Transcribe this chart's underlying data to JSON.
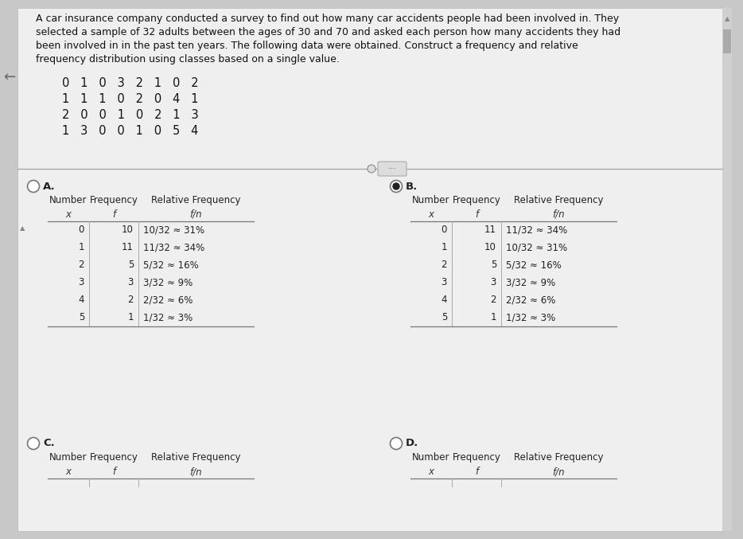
{
  "bg_color": "#c8c8c8",
  "content_bg": "#e8e8e8",
  "paragraph_text_lines": [
    "A car insurance company conducted a survey to find out how many car accidents people had been involved in. They",
    "selected a sample of 32 adults between the ages of 30 and 70 and asked each person how many accidents they had",
    "been involved in in the past ten years. The following data were obtained. Construct a frequency and relative",
    "frequency distribution using classes based on a single value."
  ],
  "data_rows": [
    "0   1   0   3   2   1   0   2",
    "1   1   1   0   2   0   4   1",
    "2   0   0   1   0   2   1   3",
    "1   3   0   0   1   0   5   4"
  ],
  "col_headers": [
    "Number",
    "Frequency",
    "Relative Frequency"
  ],
  "col_subheaders": [
    "x",
    "f",
    "f/n"
  ],
  "table_A": {
    "numbers": [
      "0",
      "1",
      "2",
      "3",
      "4",
      "5"
    ],
    "frequencies": [
      "10",
      "11",
      "5",
      "3",
      "2",
      "1"
    ],
    "rel_freqs": [
      "10/32 ≈ 31%",
      "11/32 ≈ 34%",
      "5/32 ≈ 16%",
      "3/32 ≈ 9%",
      "2/32 ≈ 6%",
      "1/32 ≈ 3%"
    ]
  },
  "table_B": {
    "numbers": [
      "0",
      "1",
      "2",
      "3",
      "4",
      "5"
    ],
    "frequencies": [
      "11",
      "10",
      "5",
      "3",
      "2",
      "1"
    ],
    "rel_freqs": [
      "11/32 ≈ 34%",
      "10/32 ≈ 31%",
      "5/32 ≈ 16%",
      "3/32 ≈ 9%",
      "2/32 ≈ 6%",
      "1/32 ≈ 3%"
    ]
  },
  "option_labels": [
    "A.",
    "B.",
    "C.",
    "D."
  ],
  "selected_option": 1
}
